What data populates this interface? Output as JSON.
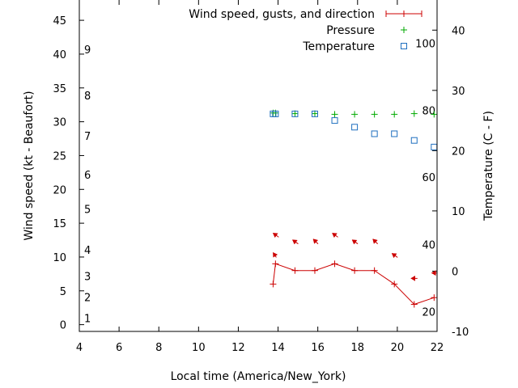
{
  "chart_data": {
    "type": "line",
    "xlabel": "Local time (America/New_York)",
    "ylabel_left": "Wind speed (kt - Beaufort)",
    "ylabel_right": "Temperature (C - F)",
    "xlim": [
      4,
      22
    ],
    "ylim_left": [
      -1,
      48
    ],
    "ylim_right": [
      -10,
      45
    ],
    "x_ticks": [
      "4",
      "6",
      "8",
      "10",
      "12",
      "14",
      "16",
      "18",
      "20",
      "22"
    ],
    "y_ticks_left": [
      "0",
      "5",
      "10",
      "15",
      "20",
      "25",
      "30",
      "35",
      "40",
      "45"
    ],
    "y_ticks_right": [
      "-10",
      "0",
      "10",
      "20",
      "30",
      "40"
    ],
    "beaufort_labels": [
      {
        "text": "1",
        "y": 1.0
      },
      {
        "text": "2",
        "y": 4.1
      },
      {
        "text": "3",
        "y": 7.2
      },
      {
        "text": "4",
        "y": 11.1
      },
      {
        "text": "5",
        "y": 17.1
      },
      {
        "text": "6",
        "y": 22.2
      },
      {
        "text": "7",
        "y": 27.9
      },
      {
        "text": "8",
        "y": 33.9
      },
      {
        "text": "9",
        "y": 40.7
      }
    ],
    "fahrenheit_labels": [
      {
        "text": "20",
        "y": -6.7
      },
      {
        "text": "40",
        "y": 4.4
      },
      {
        "text": "60",
        "y": 15.6
      },
      {
        "text": "80",
        "y": 26.7
      },
      {
        "text": "100",
        "y": 37.8
      }
    ],
    "series": [
      {
        "name": "Wind speed, gusts, and direction",
        "color": "#cc0000",
        "x": [
          13.75,
          13.87,
          14.85,
          15.85,
          16.85,
          17.85,
          18.85,
          19.85,
          20.85,
          21.85
        ],
        "values": [
          6,
          9,
          8,
          8,
          9,
          8,
          8,
          6,
          3,
          4
        ],
        "direction_arrows": [
          {
            "x": 13.75,
            "y": 10.3,
            "dx": -4,
            "dy": -6
          },
          {
            "x": 13.87,
            "y": 13.3,
            "dx": -7,
            "dy": -5
          },
          {
            "x": 14.85,
            "y": 12.3,
            "dx": -7,
            "dy": -5
          },
          {
            "x": 15.85,
            "y": 12.3,
            "dx": -6,
            "dy": -6
          },
          {
            "x": 16.85,
            "y": 13.3,
            "dx": -7,
            "dy": -5
          },
          {
            "x": 17.85,
            "y": 12.3,
            "dx": -7,
            "dy": -5
          },
          {
            "x": 18.85,
            "y": 12.3,
            "dx": -6,
            "dy": -6
          },
          {
            "x": 19.85,
            "y": 10.3,
            "dx": -7,
            "dy": -5
          },
          {
            "x": 20.85,
            "y": 7.2,
            "dx": -8,
            "dy": 0
          },
          {
            "x": 21.85,
            "y": 8.0,
            "dx": -7,
            "dy": 0
          }
        ]
      },
      {
        "name": "Pressure",
        "color": "#00aa00",
        "x": [
          13.75,
          13.87,
          14.85,
          15.85,
          16.85,
          17.85,
          18.85,
          19.85,
          20.85,
          21.85
        ],
        "values": [
          31.3,
          31.3,
          31.2,
          31.2,
          31.1,
          31.1,
          31.1,
          31.1,
          31.2,
          31.1
        ]
      },
      {
        "name": "Temperature",
        "color": "#1f6fbf",
        "x": [
          13.75,
          13.87,
          14.85,
          15.85,
          16.85,
          17.85,
          18.85,
          19.85,
          20.85,
          21.85
        ],
        "values": [
          26.1,
          26.1,
          26.1,
          26.1,
          25.0,
          23.9,
          22.8,
          22.8,
          21.7,
          20.6
        ]
      }
    ],
    "legend_position": "top-right",
    "grid": false
  }
}
